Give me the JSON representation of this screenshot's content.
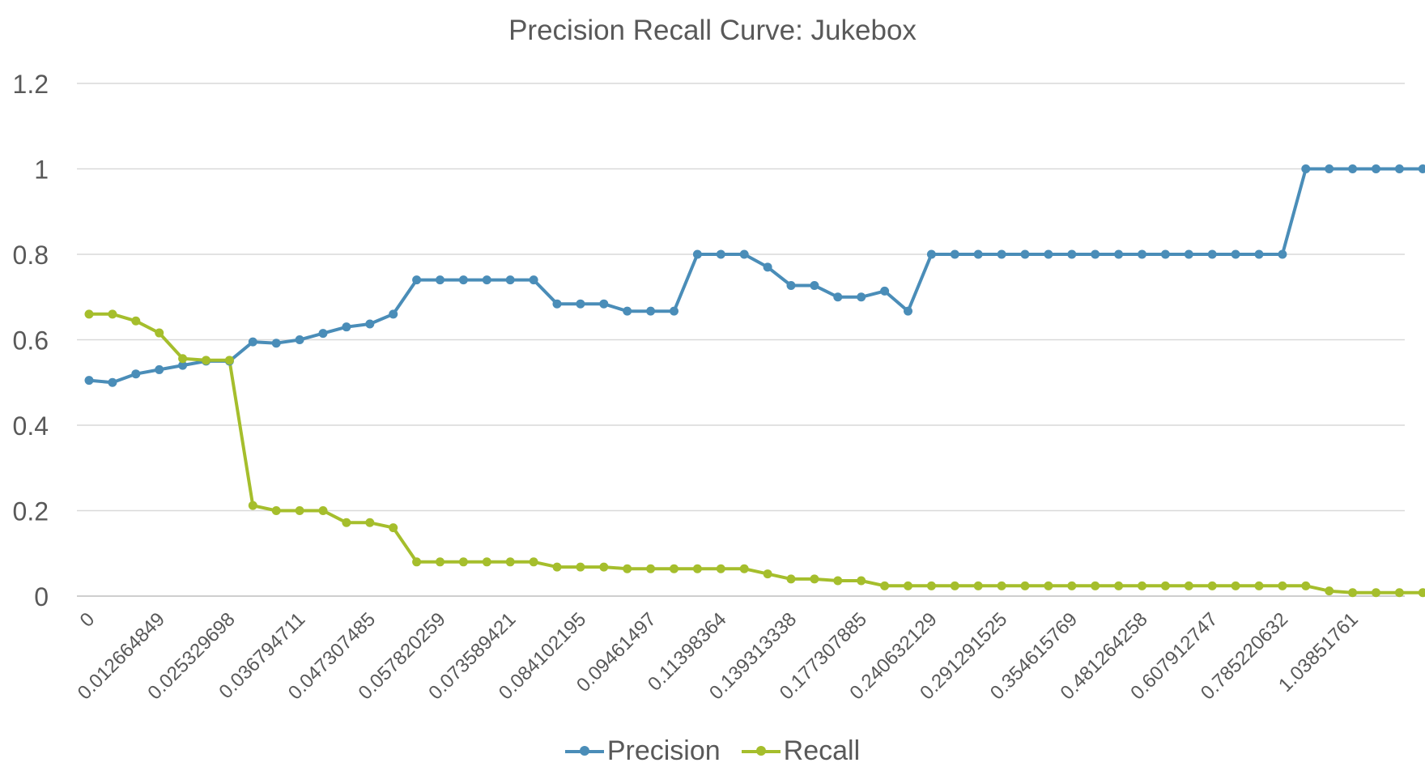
{
  "chart_data": {
    "type": "line",
    "title": "Precision Recall Curve: Jukebox",
    "xlabel": "",
    "ylabel": "",
    "ylim": [
      0,
      1.2
    ],
    "yticks": [
      "0",
      "0.2",
      "0.4",
      "0.6",
      "0.8",
      "1",
      "1.2"
    ],
    "grid": true,
    "legend_position": "bottom",
    "x_tick_labels": [
      "0",
      "0.012664849",
      "0.025329698",
      "0.036794711",
      "0.047307485",
      "0.057820259",
      "0.073589421",
      "0.084102195",
      "0.09461497",
      "0.11398364",
      "0.139313338",
      "0.177307885",
      "0.240632129",
      "0.291291525",
      "0.354615769",
      "0.481264258",
      "0.607912747",
      "0.785220632",
      "1.03851761"
    ],
    "series": [
      {
        "name": "Precision",
        "color": "#4a8db8",
        "values": [
          0.505,
          0.5,
          0.52,
          0.53,
          0.54,
          0.55,
          0.55,
          0.595,
          0.592,
          0.6,
          0.615,
          0.63,
          0.637,
          0.66,
          0.74,
          0.74,
          0.74,
          0.74,
          0.74,
          0.74,
          0.684,
          0.684,
          0.684,
          0.667,
          0.667,
          0.667,
          0.8,
          0.8,
          0.8,
          0.77,
          0.727,
          0.727,
          0.7,
          0.7,
          0.714,
          0.667,
          0.8,
          0.8,
          0.8,
          0.8,
          0.8,
          0.8,
          0.8,
          0.8,
          0.8,
          0.8,
          0.8,
          0.8,
          0.8,
          0.8,
          0.8,
          0.8,
          1.0,
          1.0,
          1.0,
          1.0,
          1.0,
          1.0
        ]
      },
      {
        "name": "Recall",
        "color": "#a5be2c",
        "values": [
          0.66,
          0.66,
          0.644,
          0.616,
          0.556,
          0.552,
          0.552,
          0.212,
          0.2,
          0.2,
          0.2,
          0.172,
          0.172,
          0.16,
          0.08,
          0.08,
          0.08,
          0.08,
          0.08,
          0.08,
          0.068,
          0.068,
          0.068,
          0.064,
          0.064,
          0.064,
          0.064,
          0.064,
          0.064,
          0.052,
          0.04,
          0.04,
          0.036,
          0.036,
          0.024,
          0.024,
          0.024,
          0.024,
          0.024,
          0.024,
          0.024,
          0.024,
          0.024,
          0.024,
          0.024,
          0.024,
          0.024,
          0.024,
          0.024,
          0.024,
          0.024,
          0.024,
          0.024,
          0.012,
          0.008,
          0.008,
          0.008,
          0.008
        ]
      }
    ]
  }
}
